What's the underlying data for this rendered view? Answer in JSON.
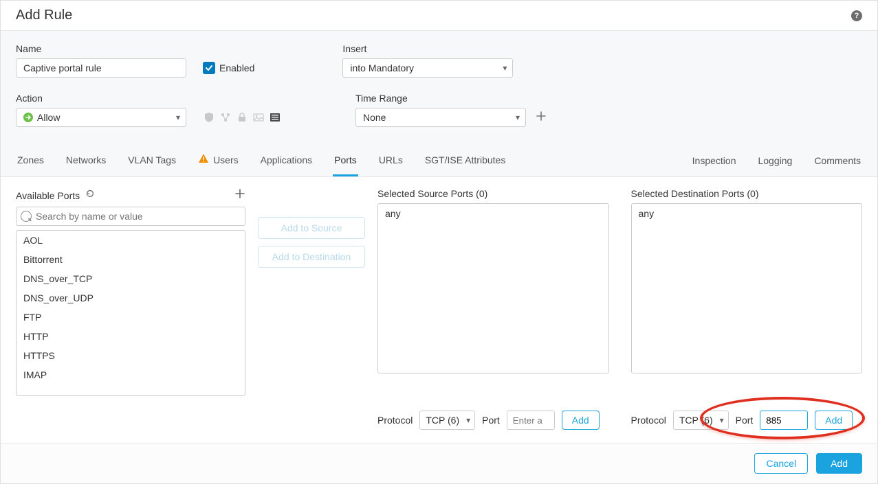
{
  "dialog": {
    "title": "Add Rule"
  },
  "fields": {
    "name_label": "Name",
    "name_value": "Captive portal rule",
    "enabled_label": "Enabled",
    "enabled_checked": true,
    "insert_label": "Insert",
    "insert_value": "into Mandatory",
    "action_label": "Action",
    "action_value": "Allow",
    "timerange_label": "Time Range",
    "timerange_value": "None"
  },
  "tabs": {
    "left": [
      "Zones",
      "Networks",
      "VLAN Tags",
      "Users",
      "Applications",
      "Ports",
      "URLs",
      "SGT/ISE Attributes"
    ],
    "active": "Ports",
    "warning_tab": "Users",
    "right": [
      "Inspection",
      "Logging",
      "Comments"
    ]
  },
  "ports": {
    "available_title": "Available Ports",
    "search_placeholder": "Search by name or value",
    "list": [
      "AOL",
      "Bittorrent",
      "DNS_over_TCP",
      "DNS_over_UDP",
      "FTP",
      "HTTP",
      "HTTPS",
      "IMAP"
    ],
    "btn_to_source": "Add to Source",
    "btn_to_dest": "Add to Destination",
    "source_title": "Selected Source Ports (0)",
    "dest_title": "Selected Destination Ports (0)",
    "any_label": "any"
  },
  "protoRow": {
    "protocol_label": "Protocol",
    "protocol_value": "TCP (6)",
    "port_label": "Port",
    "src_port_placeholder": "Enter a",
    "dst_port_value": "885",
    "add_label": "Add"
  },
  "footer": {
    "cancel": "Cancel",
    "add": "Add"
  },
  "colors": {
    "accent": "#1ba3e0",
    "checkbox": "#007cbe",
    "ring": "#e02f1f",
    "allowGreen": "#6fbf4b",
    "warn": "#f58f00"
  }
}
